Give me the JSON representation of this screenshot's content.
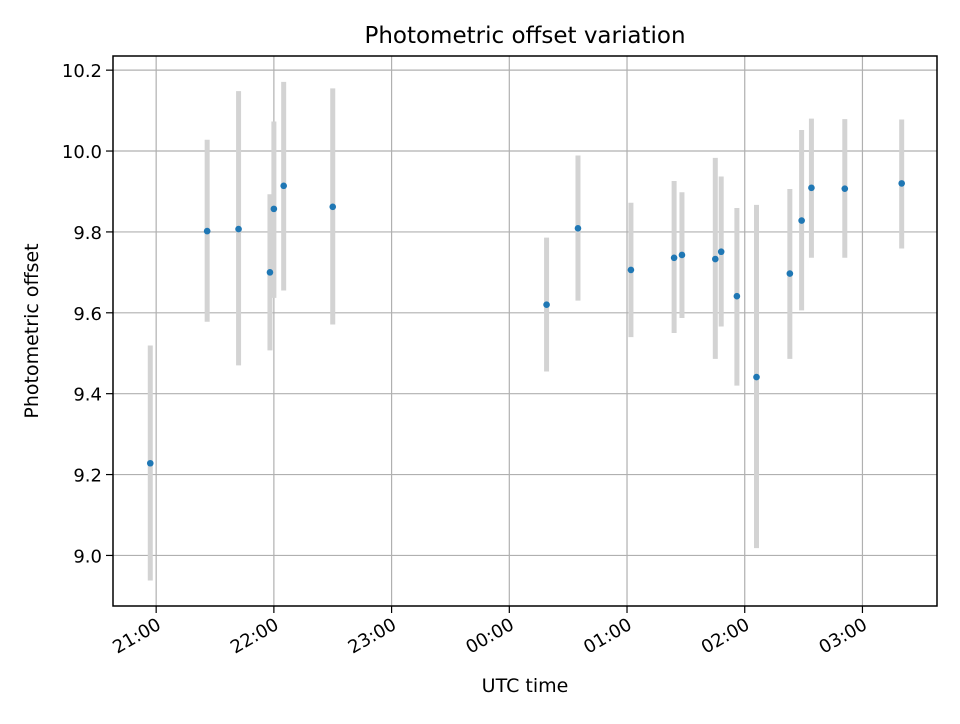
{
  "chart_data": {
    "type": "scatter",
    "title": "Photometric offset variation",
    "xlabel": "UTC time",
    "ylabel": "Photometric offset",
    "x_unit": "UTC time (hh:mm), observation night spanning midnight",
    "xlim": [
      "20:38",
      "03:38"
    ],
    "ylim": [
      8.875,
      10.235
    ],
    "grid": true,
    "legend": "none",
    "x_ticks": [
      "21:00",
      "22:00",
      "23:00",
      "00:00",
      "01:00",
      "02:00",
      "03:00"
    ],
    "y_ticks": [
      "9.0",
      "9.2",
      "9.4",
      "9.6",
      "9.8",
      "10.0",
      "10.2"
    ],
    "colors": {
      "point": "#1f77b4",
      "errorbar": "#d3d3d3",
      "grid": "#b0b0b0"
    },
    "series": [
      {
        "x": [
          "20:57",
          "21:26",
          "21:42",
          "21:58",
          "22:00",
          "22:05",
          "22:30",
          "00:19",
          "00:35",
          "01:02",
          "01:24",
          "01:28",
          "01:45",
          "01:48",
          "01:56",
          "02:06",
          "02:23",
          "02:29",
          "02:34",
          "02:51",
          "03:20"
        ],
        "y": [
          9.228,
          9.802,
          9.807,
          9.7,
          9.857,
          9.914,
          9.862,
          9.62,
          9.809,
          9.706,
          9.736,
          9.743,
          9.733,
          9.751,
          9.641,
          9.441,
          9.697,
          9.828,
          9.909,
          9.907,
          9.92
        ],
        "y_low": [
          8.938,
          9.578,
          9.47,
          9.507,
          9.637,
          9.655,
          9.571,
          9.455,
          9.63,
          9.54,
          9.55,
          9.587,
          9.486,
          9.566,
          9.42,
          9.018,
          9.486,
          9.606,
          9.736,
          9.736,
          9.759
        ],
        "y_high": [
          9.519,
          10.028,
          10.148,
          9.893,
          10.073,
          10.171,
          10.155,
          9.786,
          9.989,
          9.872,
          9.926,
          9.898,
          9.983,
          9.937,
          9.859,
          9.867,
          9.906,
          10.052,
          10.08,
          10.079,
          10.078
        ]
      }
    ]
  }
}
